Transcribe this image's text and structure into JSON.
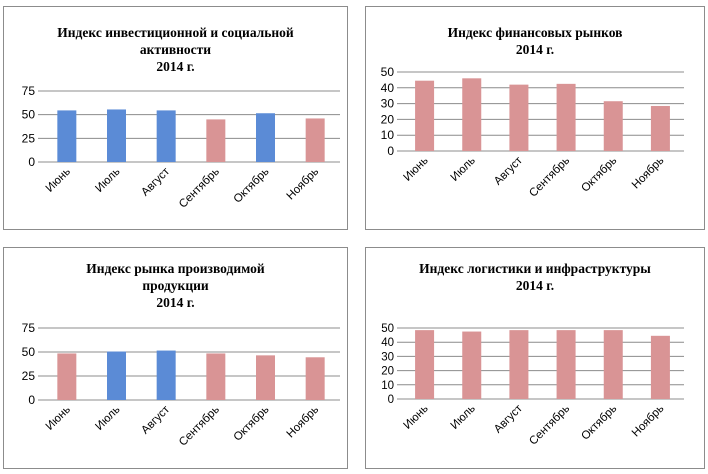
{
  "colors": {
    "blue": "#5b8bd6",
    "pink": "#d99495",
    "grid": "#8c8c8c"
  },
  "chart_data": [
    {
      "type": "bar",
      "title": [
        "Индекс инвестиционной и социальной",
        "активности",
        "2014 г."
      ],
      "categories": [
        "Июнь",
        "Июль",
        "Август",
        "Сентябрь",
        "Октябрь",
        "Ноябрь"
      ],
      "values": [
        54.5,
        55.5,
        54.5,
        45,
        51.5,
        46
      ],
      "bar_colors": [
        "blue",
        "blue",
        "blue",
        "pink",
        "blue",
        "pink"
      ],
      "ylim": [
        0,
        75
      ],
      "yticks": [
        0,
        25,
        50,
        75
      ],
      "grid": true,
      "xlabel": "",
      "ylabel": ""
    },
    {
      "type": "bar",
      "title": [
        "Индекс финансовых рынков",
        "2014 г."
      ],
      "categories": [
        "Июнь",
        "Июль",
        "Август",
        "Сентябрь",
        "Октябрь",
        "Ноябрь"
      ],
      "values": [
        44.5,
        46,
        42,
        42.5,
        31.5,
        28.5
      ],
      "bar_colors": [
        "pink",
        "pink",
        "pink",
        "pink",
        "pink",
        "pink"
      ],
      "ylim": [
        0,
        50
      ],
      "yticks": [
        0,
        10,
        20,
        30,
        40,
        50
      ],
      "grid": true,
      "xlabel": "",
      "ylabel": ""
    },
    {
      "type": "bar",
      "title": [
        "Индекс рынка производимой",
        "продукции",
        "2014 г."
      ],
      "categories": [
        "Июнь",
        "Июль",
        "Август",
        "Сентябрь",
        "Октябрь",
        "Ноябрь"
      ],
      "values": [
        48.5,
        50.5,
        51.5,
        48.5,
        46.5,
        44.5
      ],
      "bar_colors": [
        "pink",
        "blue",
        "blue",
        "pink",
        "pink",
        "pink"
      ],
      "ylim": [
        0,
        75
      ],
      "yticks": [
        0,
        25,
        50,
        75
      ],
      "grid": true,
      "xlabel": "",
      "ylabel": ""
    },
    {
      "type": "bar",
      "title": [
        "Индекс логистики и инфраструктуры",
        "2014 г."
      ],
      "categories": [
        "Июнь",
        "Июль",
        "Август",
        "Сентябрь",
        "Октябрь",
        "Ноябрь"
      ],
      "values": [
        48.5,
        47.5,
        48.5,
        48.5,
        48.5,
        44.5
      ],
      "bar_colors": [
        "pink",
        "pink",
        "pink",
        "pink",
        "pink",
        "pink"
      ],
      "ylim": [
        0,
        50
      ],
      "yticks": [
        0,
        10,
        20,
        30,
        40,
        50
      ],
      "grid": true,
      "xlabel": "",
      "ylabel": ""
    }
  ]
}
